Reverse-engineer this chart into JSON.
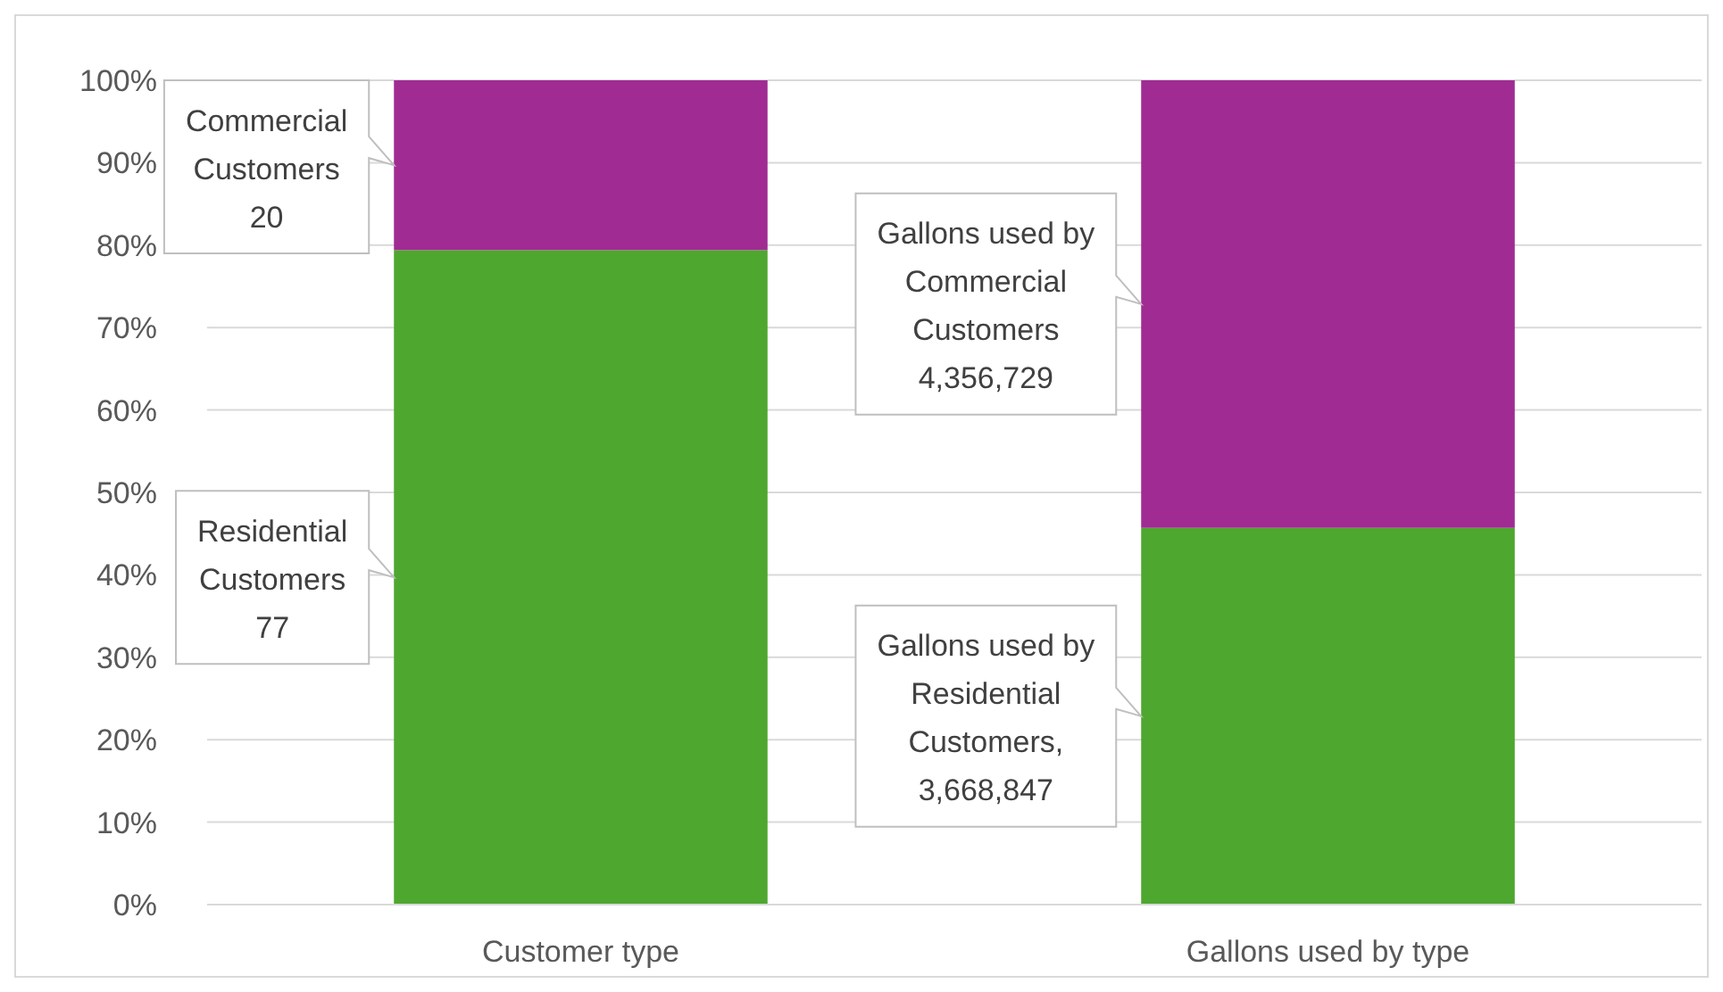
{
  "chart_data": {
    "type": "bar",
    "stacked": true,
    "grid": "y",
    "categories": [
      "Customer type",
      "Gallons used by type"
    ],
    "ylim": [
      0,
      100
    ],
    "yticks": [
      {
        "value": 0,
        "label": "0%"
      },
      {
        "value": 10,
        "label": "10%"
      },
      {
        "value": 20,
        "label": "20%"
      },
      {
        "value": 30,
        "label": "30%"
      },
      {
        "value": 40,
        "label": "40%"
      },
      {
        "value": 50,
        "label": "50%"
      },
      {
        "value": 60,
        "label": "60%"
      },
      {
        "value": 70,
        "label": "70%"
      },
      {
        "value": 80,
        "label": "80%"
      },
      {
        "value": 90,
        "label": "90%"
      },
      {
        "value": 100,
        "label": "100%"
      }
    ],
    "series": [
      {
        "color": "#4ea72e",
        "values": [
          79.4,
          45.7
        ]
      },
      {
        "color": "#a02b93",
        "values": [
          20.6,
          54.3
        ]
      }
    ],
    "annotations": [
      "Commercial Customers 20",
      "Residential Customers 77",
      "Gallons used by Commercial Customers 4,356,729",
      "Gallons used by Residential Customers, 3,668,847"
    ]
  }
}
